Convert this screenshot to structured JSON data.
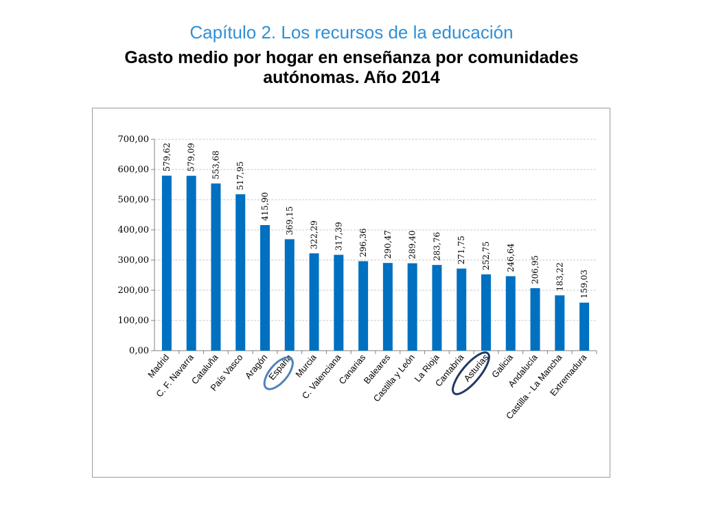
{
  "header": {
    "chapter": "Capítulo 2. Los recursos de la educación",
    "title_line1": "Gasto medio por hogar en enseñanza por comunidades",
    "title_line2": "autónomas. Año 2014"
  },
  "colors": {
    "bar": "#0070c0",
    "highlight_espana": "#4f81bd",
    "highlight_asturias": "#1f3864",
    "grid": "#c8c8c8"
  },
  "chart_data": {
    "type": "bar",
    "title": "Gasto medio por hogar en enseñanza por comunidades autónomas. Año 2014",
    "xlabel": "",
    "ylabel": "",
    "ylim": [
      0,
      700
    ],
    "yticks": [
      "0,00",
      "100,00",
      "200,00",
      "300,00",
      "400,00",
      "500,00",
      "600,00",
      "700,00"
    ],
    "grid": true,
    "legend": "none",
    "categories": [
      "Madrid",
      "C. F. Navarra",
      "Cataluña",
      "País Vasco",
      "Aragón",
      "España",
      "Murcia",
      "C. Valenciana",
      "Canarias",
      "Baleares",
      "Castilla y León",
      "La Rioja",
      "Cantabria",
      "Asturias",
      "Galicia",
      "Andalucía",
      "Castilla - La Mancha",
      "Extremadura"
    ],
    "values": [
      579.62,
      579.09,
      553.68,
      517.95,
      415.9,
      369.15,
      322.29,
      317.39,
      296.36,
      290.47,
      289.4,
      283.76,
      271.75,
      252.75,
      246.64,
      206.95,
      183.22,
      159.03
    ],
    "value_labels": [
      "579,62",
      "579,09",
      "553,68",
      "517,95",
      "415,90",
      "369,15",
      "322,29",
      "317,39",
      "296,36",
      "290,47",
      "289,40",
      "283,76",
      "271,75",
      "252,75",
      "246,64",
      "206,95",
      "183,22",
      "159,03"
    ],
    "highlighted": [
      "España",
      "Asturias"
    ]
  }
}
